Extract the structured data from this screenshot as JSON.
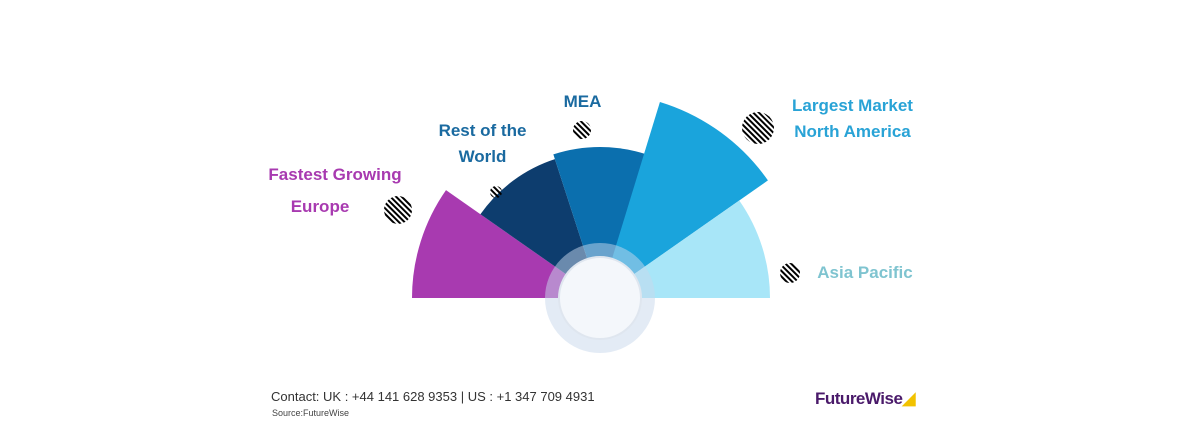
{
  "segments": [
    {
      "region": "Europe",
      "color": "#a83ab0"
    },
    {
      "region": "Rest of the World",
      "color": "#0d3d6e"
    },
    {
      "region": "MEA",
      "color": "#0b6fae"
    },
    {
      "region": "North America",
      "color": "#1aa4dc"
    },
    {
      "region": "Asia Pacific",
      "color": "#a8e6f8"
    }
  ],
  "labels": {
    "europe_line1": "Fastest Growing",
    "europe_line2": "Europe",
    "row_line1": "Rest of the",
    "row_line2": "World",
    "mea": "MEA",
    "na_line1": "Largest Market",
    "na_line2": "North America",
    "apac": "Asia Pacific"
  },
  "footer": {
    "contact": "Contact:   UK : +44 141 628 9353  |  US :  +1 347 709 4931",
    "source": "Source:FutureWise",
    "logo": "FutureWise"
  }
}
